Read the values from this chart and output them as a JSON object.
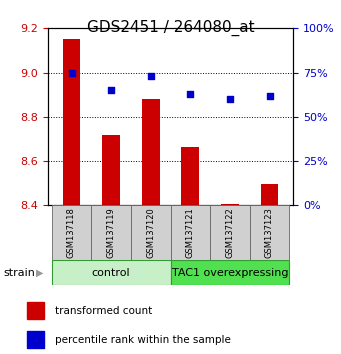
{
  "title": "GDS2451 / 264080_at",
  "samples": [
    "GSM137118",
    "GSM137119",
    "GSM137120",
    "GSM137121",
    "GSM137122",
    "GSM137123"
  ],
  "transformed_counts": [
    9.15,
    8.72,
    8.88,
    8.665,
    8.405,
    8.495
  ],
  "percentile_ranks": [
    75,
    65,
    73,
    63,
    60,
    62
  ],
  "bar_bottom": 8.4,
  "ylim_left": [
    8.4,
    9.2
  ],
  "ylim_right": [
    0,
    100
  ],
  "yticks_left": [
    8.4,
    8.6,
    8.8,
    9.0,
    9.2
  ],
  "yticks_right": [
    0,
    25,
    50,
    75,
    100
  ],
  "group_labels": [
    "control",
    "TAC1 overexpressing"
  ],
  "group_colors": [
    "#c8f0c8",
    "#50e050"
  ],
  "bar_color": "#cc0000",
  "dot_color": "#0000cc",
  "strain_label": "strain",
  "legend_bar_label": "transformed count",
  "legend_dot_label": "percentile rank within the sample",
  "xlabel_color": "#cc0000",
  "ylabel_right_color": "#0000cc",
  "title_fontsize": 11,
  "tick_fontsize": 8,
  "bar_width": 0.45
}
